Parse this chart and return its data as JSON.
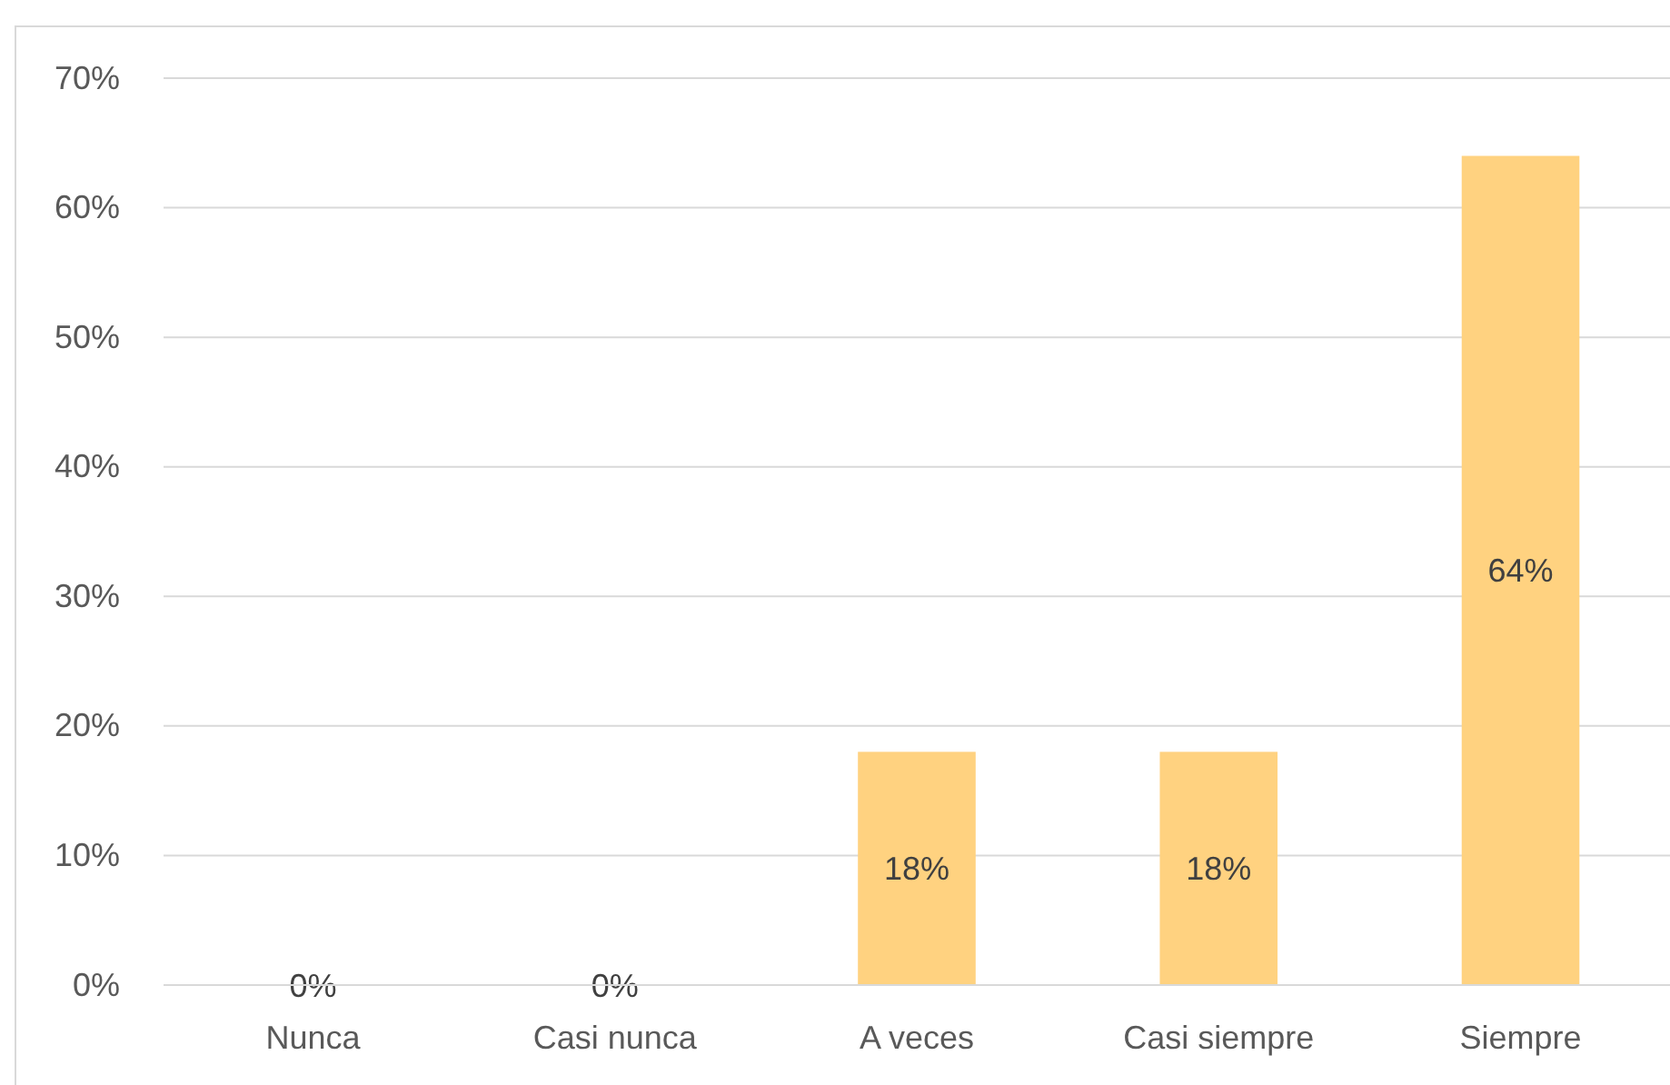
{
  "chart_data": {
    "type": "bar",
    "categories": [
      "Nunca",
      "Casi nunca",
      "A veces",
      "Casi siempre",
      "Siempre"
    ],
    "values": [
      0,
      0,
      18,
      18,
      64
    ],
    "color": "#ffd280",
    "value_labels": [
      "0%",
      "0%",
      "18%",
      "18%",
      "64%"
    ],
    "ylim": [
      0,
      70
    ],
    "yticks": [
      {
        "value": 0,
        "label": "0%"
      },
      {
        "value": 10,
        "label": "10%"
      },
      {
        "value": 20,
        "label": "20%"
      },
      {
        "value": 30,
        "label": "30%"
      },
      {
        "value": 40,
        "label": "40%"
      },
      {
        "value": 50,
        "label": "50%"
      },
      {
        "value": 60,
        "label": "60%"
      },
      {
        "value": 70,
        "label": "70%"
      }
    ],
    "grid": "y"
  }
}
